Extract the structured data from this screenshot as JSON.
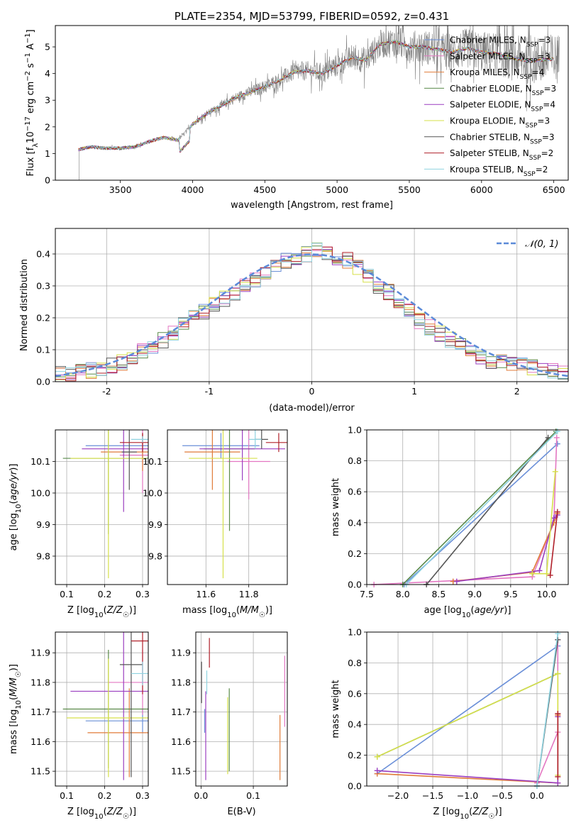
{
  "chart_data": [
    {
      "type": "line",
      "title": "PLATE=2354, MJD=53799, FIBERID=0592, z=0.431",
      "xlabel": "wavelength [Angstrom, rest frame]",
      "ylabel": "Flux [f_λ10^-17 erg cm^-2 s^-1 A^-1]",
      "ylabel_parts": [
        "Flux [f",
        "λ",
        "10",
        "−17",
        " erg cm",
        "−2",
        " s",
        "−1",
        " A",
        "−1",
        "]"
      ],
      "xlim": [
        3050,
        6600
      ],
      "ylim": [
        0,
        5.8
      ],
      "xticks": [
        3500,
        4000,
        4500,
        5000,
        5500,
        6000,
        6500
      ],
      "yticks": [
        0,
        1,
        2,
        3,
        4,
        5
      ],
      "legend_position": "top-right",
      "observed_color": "#7f7f7f",
      "series": [
        {
          "name": "Chabrier MILES, N_SSP=3",
          "label": "Chabrier MILES, N",
          "sub": "SSP",
          "suffix": "=3",
          "color": "#6a8fd8"
        },
        {
          "name": "Salpeter MILES, N_SSP=3",
          "label": "Salpeter MILES, N",
          "sub": "SSP",
          "suffix": "=3",
          "color": "#e377c2"
        },
        {
          "name": "Kroupa MILES, N_SSP=4",
          "label": "Kroupa MILES, N",
          "sub": "SSP",
          "suffix": "=4",
          "color": "#e07b39"
        },
        {
          "name": "Chabrier ELODIE, N_SSP=3",
          "label": "Chabrier ELODIE, N",
          "sub": "SSP",
          "suffix": "=3",
          "color": "#5a8a4a"
        },
        {
          "name": "Salpeter ELODIE, N_SSP=4",
          "label": "Salpeter ELODIE, N",
          "sub": "SSP",
          "suffix": "=4",
          "color": "#9b3fc0"
        },
        {
          "name": "Kroupa ELODIE, N_SSP=3",
          "label": "Kroupa ELODIE, N",
          "sub": "SSP",
          "suffix": "=3",
          "color": "#d6e04a"
        },
        {
          "name": "Chabrier STELIB, N_SSP=3",
          "label": "Chabrier STELIB, N",
          "sub": "SSP",
          "suffix": "=3",
          "color": "#555555"
        },
        {
          "name": "Salpeter STELIB, N_SSP=2",
          "label": "Salpeter STELIB, N",
          "sub": "SSP",
          "suffix": "=2",
          "color": "#b0202a"
        },
        {
          "name": "Kroupa STELIB, N_SSP=2",
          "label": "Kroupa STELIB, N",
          "sub": "SSP",
          "suffix": "=2",
          "color": "#8fd3e0"
        }
      ],
      "continuum": {
        "x": [
          3210,
          3300,
          3400,
          3500,
          3600,
          3700,
          3800,
          3900,
          4000,
          4100,
          4200,
          4300,
          4400,
          4500,
          4600,
          4700,
          4800,
          4900,
          5000,
          5100,
          5200,
          5300,
          5400,
          5500,
          5600,
          5700,
          5800,
          5900,
          6000,
          6100,
          6200,
          6300,
          6400,
          6500
        ],
        "y": [
          1.15,
          1.25,
          1.2,
          1.2,
          1.25,
          1.45,
          1.6,
          1.5,
          2.1,
          2.5,
          2.8,
          3.1,
          3.3,
          3.5,
          3.75,
          4.05,
          4.1,
          4.0,
          4.3,
          4.6,
          4.5,
          5.1,
          5.2,
          5.0,
          5.0,
          4.9,
          4.8,
          4.95,
          4.8,
          4.75,
          4.6,
          4.5,
          4.5,
          4.55
        ]
      }
    },
    {
      "type": "bar",
      "xlabel": "(data-model)/error",
      "ylabel": "Normed distribution",
      "xlim": [
        -2.5,
        2.5
      ],
      "ylim": [
        0,
        0.48
      ],
      "xticks": [
        -2,
        -1,
        0,
        1,
        2
      ],
      "yticks": [
        0.0,
        0.1,
        0.2,
        0.3,
        0.4
      ],
      "bins": [
        -2.5,
        2.5,
        50
      ],
      "legend_position": "top-right",
      "legend": [
        "𝒩(0, 1)"
      ],
      "gaussian": {
        "mean": 0,
        "sigma": 1,
        "color": "#5b8ad8"
      },
      "histogram_mean": [
        0.025,
        0.022,
        0.03,
        0.035,
        0.042,
        0.05,
        0.06,
        0.075,
        0.095,
        0.11,
        0.13,
        0.15,
        0.18,
        0.2,
        0.22,
        0.24,
        0.26,
        0.28,
        0.3,
        0.32,
        0.34,
        0.36,
        0.38,
        0.39,
        0.4,
        0.41,
        0.4,
        0.39,
        0.38,
        0.36,
        0.33,
        0.3,
        0.28,
        0.25,
        0.22,
        0.19,
        0.17,
        0.15,
        0.13,
        0.11,
        0.09,
        0.075,
        0.065,
        0.06,
        0.055,
        0.05,
        0.045,
        0.04,
        0.035,
        0.03
      ]
    },
    {
      "type": "scatter",
      "xlabel": "Z [log10(Z/Z☉)]",
      "ylabel": "age  [log10(age/yr)]",
      "xlim": [
        0.07,
        0.315
      ],
      "ylim": [
        9.71,
        10.2
      ],
      "xticks": [
        0.1,
        0.2,
        0.3
      ],
      "xticklabels": [
        "0.1",
        "0.2",
        "0.3"
      ],
      "yticks": [
        9.8,
        9.9,
        10.0,
        10.1
      ],
      "yticklabels": [
        "9.8",
        "9.9",
        "10.0",
        "10.1"
      ],
      "points": [
        {
          "model": 0,
          "x": 0.3,
          "y": 10.15,
          "xerr": 0.15,
          "yerr": 0.04
        },
        {
          "model": 1,
          "x": 0.3,
          "y": 10.12,
          "xerr": 0.06,
          "yerr": 0.12
        },
        {
          "model": 2,
          "x": 0.3,
          "y": 10.13,
          "xerr": 0.11,
          "yerr": 0.06
        },
        {
          "model": 3,
          "x": 0.21,
          "y": 10.11,
          "xerr": 0.12,
          "yerr": 0.24
        },
        {
          "model": 4,
          "x": 0.25,
          "y": 10.14,
          "xerr": 0.11,
          "yerr": 0.2
        },
        {
          "model": 5,
          "x": 0.21,
          "y": 10.11,
          "xerr": 0.1,
          "yerr": 0.38
        },
        {
          "model": 6,
          "x": 0.265,
          "y": 10.13,
          "xerr": 0.02,
          "yerr": 0.12
        },
        {
          "model": 7,
          "x": 0.3,
          "y": 10.16,
          "xerr": 0.06,
          "yerr": 0.03
        },
        {
          "model": 8,
          "x": 0.3,
          "y": 10.17,
          "xerr": 0.03,
          "yerr": 0.01
        }
      ]
    },
    {
      "type": "scatter",
      "xlabel": "mass [log10(M/M☉)]",
      "ylabel": "",
      "xlim": [
        11.42,
        11.98
      ],
      "ylim": [
        9.71,
        10.2
      ],
      "xticks": [
        11.6,
        11.8
      ],
      "xticklabels": [
        "11.6",
        "11.8"
      ],
      "yticks": [
        9.8,
        9.9,
        10.0,
        10.1
      ],
      "yticklabels": [
        "9.8",
        "9.9",
        "10.0",
        "10.1"
      ],
      "points": [
        {
          "model": 0,
          "x": 11.67,
          "y": 10.15,
          "xerr": 0.18,
          "yerr": 0.04
        },
        {
          "model": 1,
          "x": 11.8,
          "y": 10.1,
          "xerr": 0.1,
          "yerr": 0.12
        },
        {
          "model": 2,
          "x": 11.63,
          "y": 10.13,
          "xerr": 0.13,
          "yerr": 0.12
        },
        {
          "model": 3,
          "x": 11.71,
          "y": 10.14,
          "xerr": 0.12,
          "yerr": 0.26
        },
        {
          "model": 4,
          "x": 11.77,
          "y": 10.14,
          "xerr": 0.2,
          "yerr": 0.1
        },
        {
          "model": 5,
          "x": 11.68,
          "y": 10.11,
          "xerr": 0.16,
          "yerr": 0.38
        },
        {
          "model": 6,
          "x": 11.86,
          "y": 10.17,
          "xerr": 0.03,
          "yerr": 0.03
        },
        {
          "model": 7,
          "x": 11.94,
          "y": 10.16,
          "xerr": 0.06,
          "yerr": 0.03
        },
        {
          "model": 8,
          "x": 11.83,
          "y": 10.17,
          "xerr": 0.03,
          "yerr": 0.03
        }
      ]
    },
    {
      "type": "line",
      "xlabel": "age  [log10(age/yr)]",
      "ylabel": "mass weight",
      "xlim": [
        7.5,
        10.3
      ],
      "ylim": [
        0,
        1
      ],
      "xticks": [
        7.5,
        8.0,
        8.5,
        9.0,
        9.5,
        10.0
      ],
      "xticklabels": [
        "7.5",
        "8.0",
        "8.5",
        "9.0",
        "9.5",
        "10.0"
      ],
      "yticks": [
        0.0,
        0.2,
        0.4,
        0.6,
        0.8,
        1.0
      ],
      "yticklabels": [
        "0.0",
        "0.2",
        "0.4",
        "0.6",
        "0.8",
        "1.0"
      ],
      "lines": [
        {
          "model": 0,
          "x": [
            8.02,
            10.15
          ],
          "y": [
            0.0,
            0.91
          ]
        },
        {
          "model": 1,
          "x": [
            7.6,
            9.8,
            10.1,
            10.14
          ],
          "y": [
            0.0,
            0.05,
            0.4,
            0.95
          ]
        },
        {
          "model": 2,
          "x": [
            8.7,
            9.8,
            10.1,
            10.15
          ],
          "y": [
            0.02,
            0.08,
            0.4,
            0.46
          ]
        },
        {
          "model": 3,
          "x": [
            8.0,
            10.13
          ],
          "y": [
            0.0,
            0.99
          ]
        },
        {
          "model": 4,
          "x": [
            8.75,
            9.9,
            10.1,
            10.15
          ],
          "y": [
            0.02,
            0.09,
            0.43,
            0.45
          ]
        },
        {
          "model": 5,
          "x": [
            9.8,
            10.0,
            10.12
          ],
          "y": [
            0.07,
            0.07,
            0.73
          ]
        },
        {
          "model": 6,
          "x": [
            8.33,
            10.02
          ],
          "y": [
            0.0,
            0.95
          ]
        },
        {
          "model": 7,
          "x": [
            10.05,
            10.15
          ],
          "y": [
            0.06,
            0.47
          ]
        },
        {
          "model": 8,
          "x": [
            8.05,
            10.15
          ],
          "y": [
            0.0,
            0.99
          ]
        }
      ]
    },
    {
      "type": "scatter",
      "xlabel": "Z [log10(Z/Z☉)]",
      "ylabel": "mass [log10(M/M☉)]",
      "xlim": [
        0.07,
        0.315
      ],
      "ylim": [
        11.45,
        11.97
      ],
      "xticks": [
        0.1,
        0.2,
        0.3
      ],
      "xticklabels": [
        "0.1",
        "0.2",
        "0.3"
      ],
      "yticks": [
        11.5,
        11.6,
        11.7,
        11.8,
        11.9
      ],
      "yticklabels": [
        "11.5",
        "11.6",
        "11.7",
        "11.8",
        "11.9"
      ],
      "points": [
        {
          "model": 0,
          "x": 0.3,
          "y": 11.67,
          "xerr": 0.15,
          "yerr": 0.04
        },
        {
          "model": 1,
          "x": 0.3,
          "y": 11.8,
          "xerr": 0.09,
          "yerr": 0.11
        },
        {
          "model": 2,
          "x": 0.265,
          "y": 11.63,
          "xerr": 0.11,
          "yerr": 0.15
        },
        {
          "model": 3,
          "x": 0.21,
          "y": 11.71,
          "xerr": 0.12,
          "yerr": 0.2
        },
        {
          "model": 4,
          "x": 0.25,
          "y": 11.77,
          "xerr": 0.14,
          "yerr": 0.3
        },
        {
          "model": 5,
          "x": 0.21,
          "y": 11.68,
          "xerr": 0.11,
          "yerr": 0.2
        },
        {
          "model": 6,
          "x": 0.27,
          "y": 11.86,
          "xerr": 0.03,
          "yerr": 0.38
        },
        {
          "model": 7,
          "x": 0.3,
          "y": 11.94,
          "xerr": 0.03,
          "yerr": 0.18
        },
        {
          "model": 8,
          "x": 0.3,
          "y": 11.83,
          "xerr": 0.03,
          "yerr": 0.04
        }
      ]
    },
    {
      "type": "scatter",
      "xlabel": "E(B-V)",
      "ylabel": "",
      "xlim": [
        -0.01,
        0.165
      ],
      "ylim": [
        11.45,
        11.97
      ],
      "xticks": [
        0.0,
        0.1
      ],
      "xticklabels": [
        "0.0",
        "0.1"
      ],
      "yticks": [
        11.5,
        11.6,
        11.7,
        11.8,
        11.9
      ],
      "yticklabels": [
        "11.5",
        "11.6",
        "11.7",
        "11.8",
        "11.9"
      ],
      "points": [
        {
          "model": 0,
          "x": 0.007,
          "y": 11.67,
          "xerr": 0,
          "yerr": 0.04
        },
        {
          "model": 1,
          "x": 0.16,
          "y": 11.77,
          "xerr": 0,
          "yerr": 0.12
        },
        {
          "model": 2,
          "x": 0.151,
          "y": 11.58,
          "xerr": 0,
          "yerr": 0.11
        },
        {
          "model": 3,
          "x": 0.054,
          "y": 11.64,
          "xerr": 0,
          "yerr": 0.14
        },
        {
          "model": 4,
          "x": 0.009,
          "y": 11.62,
          "xerr": 0,
          "yerr": 0.15
        },
        {
          "model": 5,
          "x": 0.051,
          "y": 11.62,
          "xerr": 0,
          "yerr": 0.13
        },
        {
          "model": 6,
          "x": 0.001,
          "y": 11.8,
          "xerr": 0,
          "yerr": 0.07
        },
        {
          "model": 7,
          "x": 0.016,
          "y": 11.9,
          "xerr": 0,
          "yerr": 0.05
        },
        {
          "model": 8,
          "x": 0.011,
          "y": 11.8,
          "xerr": 0,
          "yerr": 0.04
        }
      ]
    },
    {
      "type": "line",
      "xlabel": "Z [log10(Z/Z☉)]",
      "ylabel": "mass weight",
      "xlim": [
        -2.45,
        0.45
      ],
      "ylim": [
        0,
        1
      ],
      "xticks": [
        -2.0,
        -1.5,
        -1.0,
        -0.5,
        0.0
      ],
      "xticklabels": [
        "−2.0",
        "−1.5",
        "−1.0",
        "−0.5",
        "0.0"
      ],
      "yticks": [
        0.0,
        0.2,
        0.4,
        0.6,
        0.8,
        1.0
      ],
      "yticklabels": [
        "0.0",
        "0.2",
        "0.4",
        "0.6",
        "0.8",
        "1.0"
      ],
      "lines": [
        {
          "model": 0,
          "x": [
            -2.3,
            0.3
          ],
          "y": [
            0.08,
            0.91
          ]
        },
        {
          "model": 1,
          "x": [
            0.0,
            0.3,
            0.3
          ],
          "y": [
            0.02,
            0.35,
            0.95
          ]
        },
        {
          "model": 2,
          "x": [
            -2.3,
            0.3,
            0.3
          ],
          "y": [
            0.08,
            0.02,
            0.46
          ]
        },
        {
          "model": 3,
          "x": [
            -2.3,
            0.3
          ],
          "y": [
            0.19,
            0.73
          ]
        },
        {
          "model": 4,
          "x": [
            -2.3,
            0.3,
            0.3
          ],
          "y": [
            0.1,
            0.02,
            0.45
          ]
        },
        {
          "model": 5,
          "x": [
            -2.3,
            0.3,
            0.3
          ],
          "y": [
            0.19,
            0.73,
            0.07
          ]
        },
        {
          "model": 6,
          "x": [
            0.0,
            0.3
          ],
          "y": [
            0.0,
            0.95
          ]
        },
        {
          "model": 7,
          "x": [
            0.3,
            0.3
          ],
          "y": [
            0.06,
            0.47
          ]
        },
        {
          "model": 8,
          "x": [
            0.0,
            0.3
          ],
          "y": [
            0.0,
            0.99
          ]
        }
      ]
    }
  ]
}
